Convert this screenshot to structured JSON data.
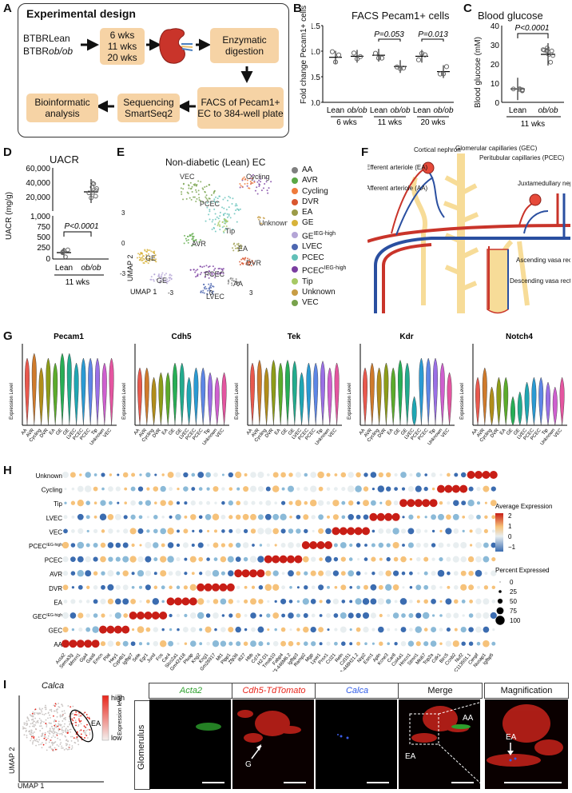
{
  "panels": {
    "A": "A",
    "B": "B",
    "C": "C",
    "D": "D",
    "E": "E",
    "F": "F",
    "G": "G",
    "H": "H",
    "I": "I"
  },
  "experimental_design": {
    "title": "Experimental design",
    "strain1": "BTBRLean",
    "strain2_prefix": "BTBR",
    "strain2_italic": "ob/ob",
    "timepoints": [
      "6 wks",
      "11 wks",
      "20 wks"
    ],
    "enzymatic": "Enzymatic digestion",
    "facs": "FACS of Pecam1+ EC to 384-well plate",
    "sequencing": "Sequencing SmartSeq2",
    "bioinformatic": "Bioinformatic analysis"
  },
  "panel_b": {
    "title": "FACS Pecam1+ cells",
    "ylabel": "Fold change Pecam1+ cells",
    "yticks": [
      "0.0",
      "0.5",
      "1.0",
      "1.5"
    ],
    "xticks": [
      "Lean",
      "ob/ob",
      "Lean",
      "ob/ob",
      "Lean",
      "ob/ob"
    ],
    "groups": [
      "6 wks",
      "11 wks",
      "20 wks"
    ],
    "pvals": [
      "P=0.053",
      "P=0.013"
    ]
  },
  "panel_c": {
    "title": "Blood glucose",
    "ylabel": "Blood glucose (mM)",
    "yticks": [
      "0",
      "10",
      "20",
      "30",
      "40"
    ],
    "xticks": [
      "Lean",
      "ob/ob"
    ],
    "group": "11 wks",
    "pval": "P<0.0001"
  },
  "panel_d": {
    "title": "UACR",
    "ylabel": "UACR (mg/g)",
    "yticks_top": [
      "60,000",
      "40,000",
      "20,000"
    ],
    "yticks_bottom": [
      "1,000",
      "750",
      "500",
      "250",
      "0"
    ],
    "xticks": [
      "Lean",
      "ob/ob"
    ],
    "group": "11 wks",
    "pval": "P<0.0001"
  },
  "panel_e": {
    "title": "Non-diabetic (Lean) EC",
    "xlabel": "UMAP 1",
    "ylabel": "UMAP 2",
    "xticks": [
      "-3",
      "0",
      "3"
    ],
    "yticks": [
      "3",
      "0",
      "-3"
    ],
    "cluster_labels": [
      "VEC",
      "Cycling",
      "PCEC",
      "Tip",
      "AVR",
      "Unknown",
      "EA",
      "DVR",
      "GE",
      "PCEC",
      "AA",
      "GE",
      "LVEC"
    ],
    "legend": [
      {
        "name": "AA",
        "color": "#7f7f7f"
      },
      {
        "name": "AVR",
        "color": "#5aa845"
      },
      {
        "name": "Cycling",
        "color": "#ef7b3b"
      },
      {
        "name": "DVR",
        "color": "#d9562f"
      },
      {
        "name": "EA",
        "color": "#9b9b48"
      },
      {
        "name": "GE",
        "color": "#d8b33a"
      },
      {
        "name": "GE",
        "sup": "IEG-high",
        "color": "#b4a5d6"
      },
      {
        "name": "LVEC",
        "color": "#4d67b0"
      },
      {
        "name": "PCEC",
        "color": "#62c0b8"
      },
      {
        "name": "PCEC",
        "sup": "IEG-high",
        "color": "#7a3ea0"
      },
      {
        "name": "Tip",
        "color": "#a7c964"
      },
      {
        "name": "Unknown",
        "color": "#c89d45"
      },
      {
        "name": "VEC",
        "color": "#78a24c"
      }
    ]
  },
  "panel_f": {
    "labels": [
      "Cortical nephron",
      "Glomerular capillaries (GEC)",
      "Efferent arteriole (EA)",
      "Peritubular capillaries (PCEC)",
      "Afferent arteriole (AA)",
      "Juxtamedullary nephron",
      "Ascending vasa recta (AVR)",
      "Descending vasa recta (DVR)"
    ]
  },
  "panel_g": {
    "genes": [
      "Pecam1",
      "Cdh5",
      "Tek",
      "Kdr",
      "Notch4"
    ],
    "ylabel": "Expression Level",
    "categories": [
      "AA",
      "AVR",
      "Cycling",
      "DVR",
      "EA",
      "GE",
      "GE",
      "LVEC",
      "PCEC",
      "PCEC",
      "Tip",
      "Unknown",
      "VEC"
    ]
  },
  "panel_h": {
    "rows": [
      "Unknown",
      "Cycling",
      "Tip",
      "LVEC",
      "VEC",
      "PCEC",
      "PCEC",
      "AVR",
      "DVR",
      "EA",
      "GEC",
      "GEC",
      "AA"
    ],
    "row_sup": [
      "",
      "",
      "",
      "",
      "",
      "IEG-high",
      "",
      "",
      "",
      "",
      "IEG-high",
      "",
      ""
    ],
    "legend_expr_title": "Average Expression",
    "legend_expr_ticks": [
      "2",
      "1",
      "0",
      "−1"
    ],
    "legend_pct_title": "Percent Expressed",
    "legend_pct_ticks": [
      "0",
      "25",
      "50",
      "75",
      "100"
    ],
    "genes": [
      "Acta2",
      "Sema3g",
      "Mmrn1",
      "Gja4",
      "Gas6",
      "Emcn",
      "Plat",
      "Hey1",
      "Cyp4b1",
      "Igfbp7",
      "Sele",
      "Egr1",
      "Jund",
      "Fos",
      "Car4",
      "Slco2a1",
      "Gm42418",
      "Plvap",
      "Kng2",
      "Kng1",
      "Gm26917",
      "Mt1",
      "Plpp1",
      "Zfp36",
      "Ifi27",
      "Hbb",
      "Cd74",
      "H2-D1",
      "Tmsb10",
      "Fabp4",
      "RP23-446M6.2",
      "Igfbp3",
      "Ramp2",
      "Mgp",
      "Lyve1",
      "Prox1",
      "Ccl21",
      "Reln",
      "Cd151",
      "RP23-448H21.2",
      "Nrp2",
      "Esm1",
      "Apln",
      "Kcne3",
      "Car8",
      "Col4a1",
      "Hmcn1",
      "Stmn1",
      "Mki67",
      "Top2a",
      "Cdk1",
      "Birc5",
      "Ccnb2",
      "Nuf2",
      "AC113501.1",
      "Cenpf",
      "Nusap1",
      "Igfbp5"
    ]
  },
  "panel_i": {
    "gene": "Calca",
    "legend_high": "high",
    "legend_low": "low",
    "legend_title": "Expression level",
    "umap_label": "EA",
    "xlabel": "UMAP 1",
    "ylabel": "UMAP 2",
    "row_label": "Glomerulus",
    "channels": [
      "Acta2",
      "Cdh5-TdTomato",
      "Calca",
      "Merge",
      "Magnification"
    ],
    "labels": [
      "G",
      "AA",
      "EA",
      "EA"
    ]
  }
}
